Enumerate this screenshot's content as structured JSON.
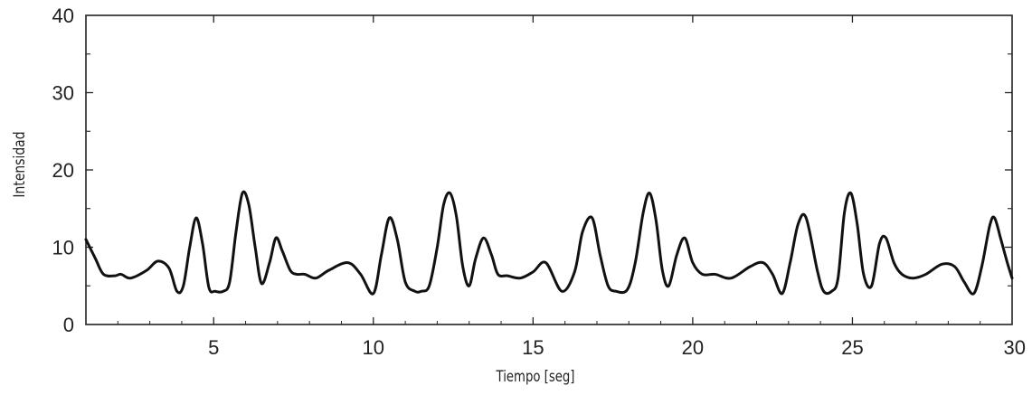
{
  "chart_data": {
    "type": "line",
    "title": "",
    "xlabel": "Tiempo [seg]",
    "ylabel": "Intensidad",
    "xlim": [
      1,
      30
    ],
    "ylim": [
      0,
      40
    ],
    "xticks": [
      5,
      10,
      15,
      20,
      25,
      30
    ],
    "yticks": [
      0,
      10,
      20,
      30,
      40
    ],
    "grid": false,
    "line_color": "#111111",
    "series": [
      {
        "x": [
          1.0,
          1.3,
          1.55,
          1.9,
          2.1,
          2.4,
          2.9,
          3.25,
          3.6,
          3.85,
          4.05,
          4.25,
          4.45,
          4.65,
          4.85,
          5.05,
          5.3,
          5.5,
          5.7,
          5.9,
          6.1,
          6.3,
          6.5,
          6.75,
          6.95,
          7.15,
          7.4,
          7.6,
          7.85,
          8.2,
          8.6,
          9.2,
          9.6,
          10.0,
          10.25,
          10.5,
          10.75,
          11.0,
          11.3,
          11.5,
          11.75,
          12.0,
          12.2,
          12.4,
          12.6,
          12.8,
          13.0,
          13.2,
          13.45,
          13.7,
          13.9,
          14.2,
          14.6,
          15.0,
          15.4,
          15.9,
          16.3,
          16.55,
          16.85,
          17.1,
          17.35,
          17.6,
          17.95,
          18.2,
          18.45,
          18.65,
          18.85,
          19.05,
          19.25,
          19.5,
          19.75,
          20.0,
          20.3,
          20.7,
          21.2,
          21.8,
          22.2,
          22.5,
          22.8,
          23.05,
          23.3,
          23.55,
          23.9,
          24.1,
          24.35,
          24.55,
          24.75,
          24.95,
          25.15,
          25.35,
          25.6,
          25.85,
          26.05,
          26.3,
          26.55,
          26.9,
          27.3,
          27.8,
          28.2,
          28.5,
          28.8,
          29.05,
          29.3,
          29.45,
          29.65,
          29.85,
          30.0
        ],
        "y": [
          11.0,
          8.5,
          6.5,
          6.3,
          6.5,
          6.0,
          7.0,
          8.2,
          7.3,
          4.3,
          5.0,
          10.0,
          13.8,
          10.5,
          4.8,
          4.3,
          4.3,
          5.5,
          12.0,
          17.0,
          15.5,
          10.0,
          5.3,
          8.0,
          11.2,
          9.5,
          7.0,
          6.5,
          6.5,
          6.0,
          7.0,
          8.0,
          6.5,
          4.0,
          9.0,
          13.8,
          11.0,
          5.5,
          4.3,
          4.3,
          5.0,
          10.0,
          15.5,
          17.0,
          14.0,
          7.5,
          5.0,
          8.5,
          11.2,
          9.0,
          6.5,
          6.3,
          6.0,
          6.8,
          8.0,
          4.3,
          6.8,
          12.0,
          13.8,
          9.0,
          5.0,
          4.3,
          4.5,
          8.0,
          14.5,
          17.0,
          13.5,
          7.0,
          5.0,
          9.0,
          11.2,
          8.0,
          6.5,
          6.5,
          6.0,
          7.5,
          8.0,
          6.5,
          4.0,
          8.0,
          13.0,
          13.8,
          7.0,
          4.3,
          4.3,
          6.0,
          14.5,
          17.0,
          13.0,
          6.5,
          5.0,
          10.5,
          11.2,
          8.0,
          6.5,
          6.0,
          6.5,
          7.8,
          7.5,
          5.5,
          4.0,
          7.5,
          12.8,
          13.8,
          11.0,
          8.0,
          6.0
        ]
      }
    ]
  }
}
